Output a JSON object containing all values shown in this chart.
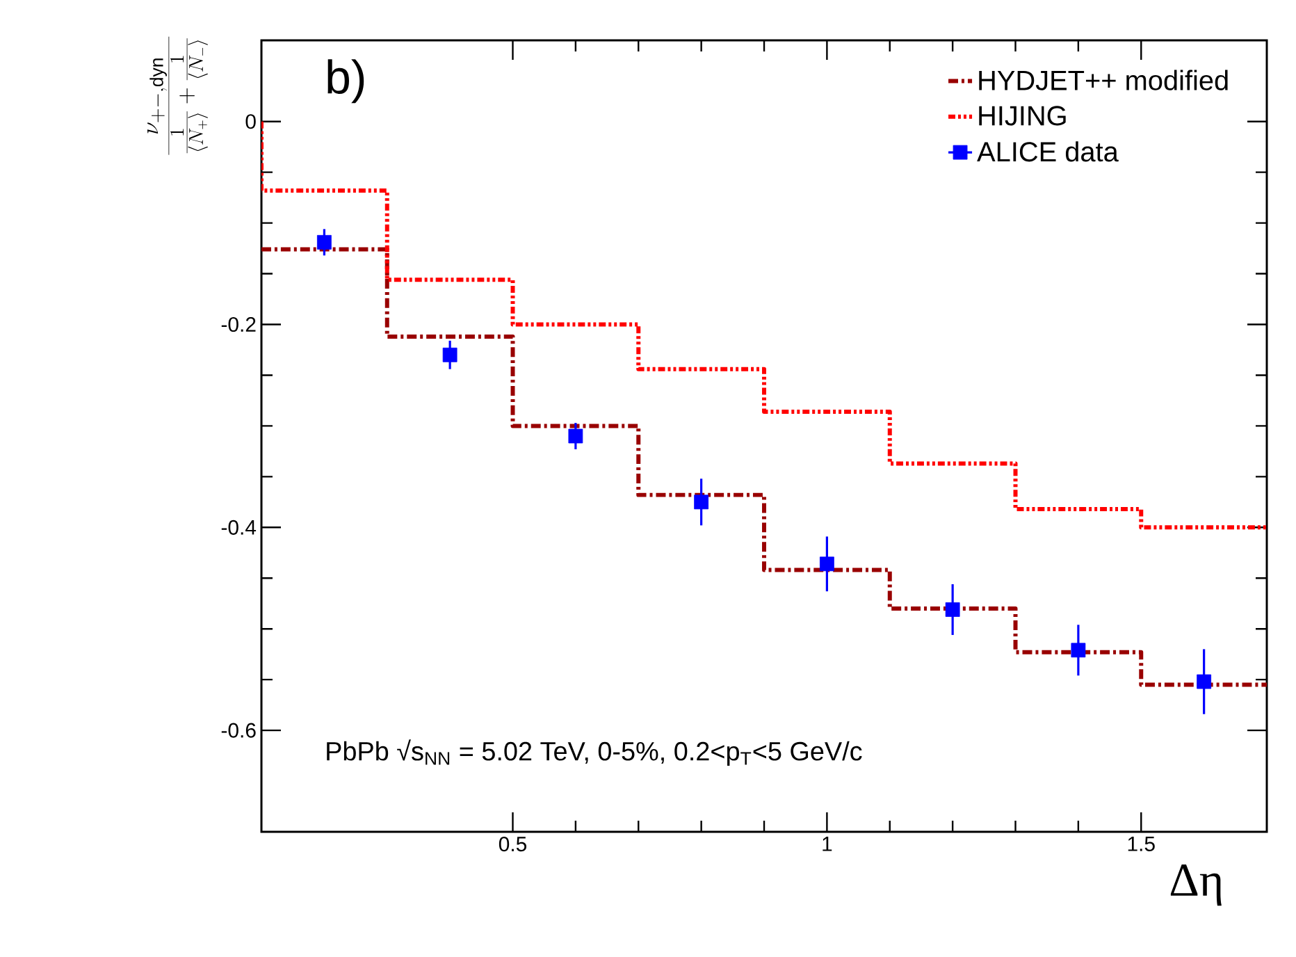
{
  "chart_data": {
    "type": "step",
    "xlabel": "Δη",
    "ylabel": "\\frac{\\nu_{+-,\\mathrm{dyn}}}{\\frac{1}{\\langle N_{+}\\rangle}+\\frac{1}{\\langle N_{-}\\rangle}}",
    "annotations": [
      "b)",
      "PbPb √s$_{NN}$ = 5.02 TeV, 0-5%, 0.2<p$_{T}$<5 GeV/c"
    ],
    "xlim": [
      0.1,
      1.7
    ],
    "ylim": [
      -0.7,
      0.08
    ],
    "xticks": [
      0.5,
      1,
      1.5
    ],
    "yticks": [
      0,
      -0.2,
      -0.4,
      -0.6
    ],
    "grid": false,
    "legend": "top right",
    "series": [
      {
        "name": "HYDJET++ modified",
        "color": "#990000",
        "line_style": "dashed",
        "x": [
          0.1,
          0.3,
          0.5,
          0.7,
          0.9,
          1.1,
          1.3,
          1.5,
          1.7
        ],
        "values": [
          -0.126,
          -0.212,
          -0.3,
          -0.368,
          -0.442,
          -0.48,
          -0.523,
          -0.555,
          -0.555
        ]
      },
      {
        "name": "HIJING",
        "color": "#ff0000",
        "line_style": "dotted",
        "x": [
          0.1,
          0.1,
          0.3,
          0.5,
          0.7,
          0.9,
          1.1,
          1.3,
          1.5,
          1.7
        ],
        "values": [
          0,
          -0.068,
          -0.156,
          -0.2,
          -0.244,
          -0.286,
          -0.337,
          -0.382,
          -0.4,
          -0.4
        ]
      },
      {
        "name": "ALICE data",
        "type": "scatter",
        "color": "#0000ff",
        "marker": "square",
        "x": [
          0.2,
          0.4,
          0.6,
          0.8,
          1.0,
          1.2,
          1.4,
          1.6
        ],
        "values": [
          -0.119,
          -0.23,
          -0.31,
          -0.375,
          -0.436,
          -0.481,
          -0.521,
          -0.552
        ],
        "errors": [
          0.013,
          0.014,
          0.013,
          0.023,
          0.027,
          0.025,
          0.025,
          0.032
        ]
      }
    ]
  }
}
